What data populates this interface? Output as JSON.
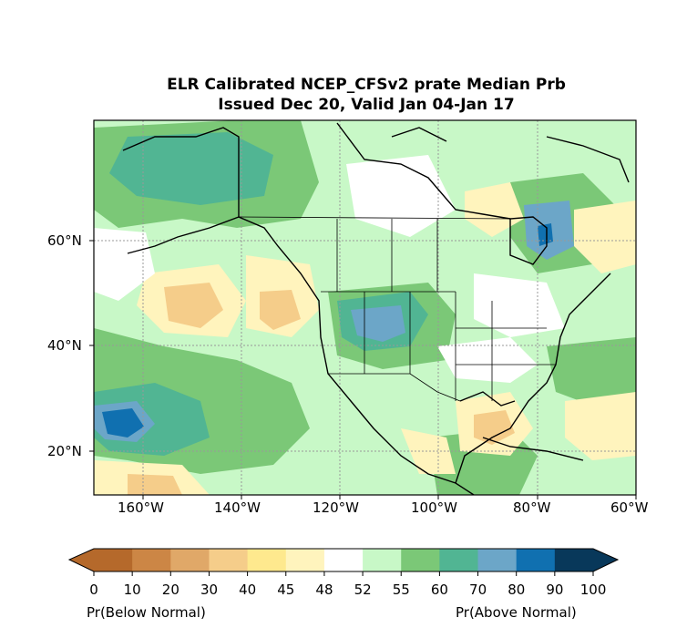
{
  "title": {
    "line1": "ELR Calibrated NCEP_CFSv2 prate Median Prb",
    "line2": "Issued Dec 20, Valid Jan 04-Jan 17"
  },
  "map": {
    "lat_labels": [
      "60°N",
      "40°N",
      "20°N"
    ],
    "lon_labels": [
      "160°W",
      "140°W",
      "120°W",
      "100°W",
      "80°W",
      "60°W"
    ],
    "lon_range": [
      -170,
      -60
    ],
    "lat_range": [
      13,
      75
    ]
  },
  "colorbar": {
    "ticks": [
      "0",
      "10",
      "20",
      "30",
      "40",
      "45",
      "48",
      "52",
      "55",
      "60",
      "70",
      "80",
      "90",
      "100"
    ],
    "colors": [
      "#b5692b",
      "#cc8645",
      "#e0a868",
      "#f5cd8a",
      "#fee98e",
      "#fff4bd",
      "#ffffff",
      "#c8f8c7",
      "#7bc877",
      "#51b593",
      "#6ca6c8",
      "#1070b0",
      "#08385a"
    ],
    "low_color": "#b5692b",
    "high_color": "#08385a",
    "left_label": "Pr(Below Normal)",
    "right_label": "Pr(Above Normal)"
  }
}
